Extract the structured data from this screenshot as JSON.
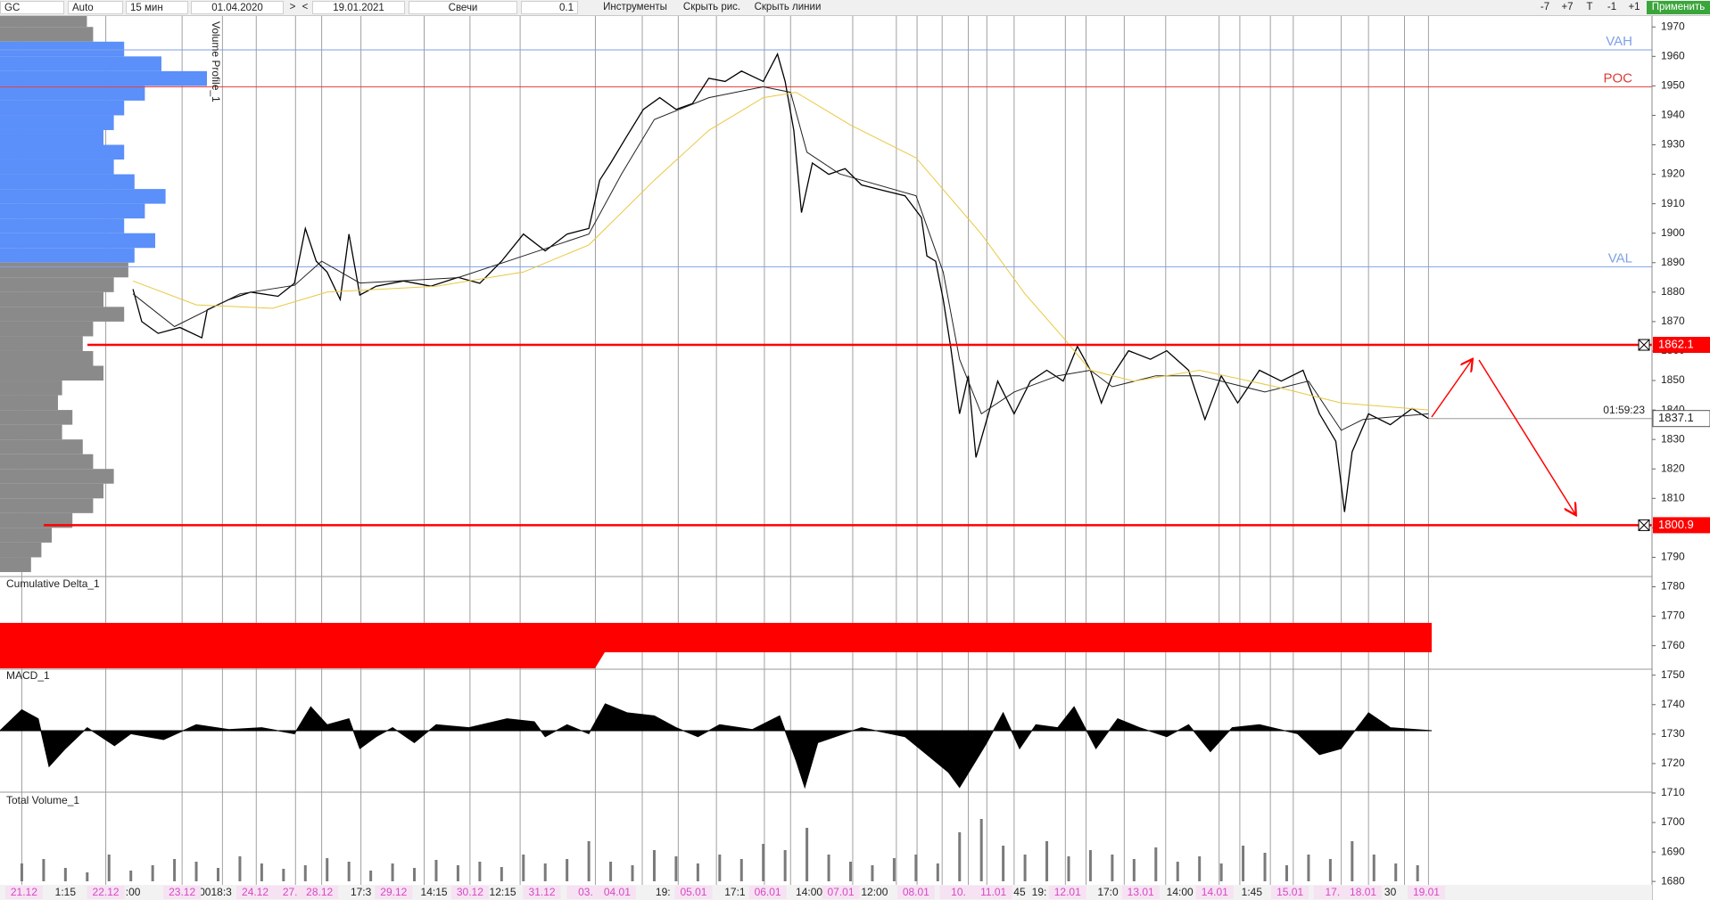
{
  "toolbar": {
    "symbol": "GC",
    "mode": "Auto",
    "timeframe": "15 мин",
    "from": "01.04.2020",
    "next": ">",
    "prev": "<",
    "to": "19.01.2021",
    "chart_style": "Свечи",
    "tick_size": "0.1",
    "tools": "Инструменты",
    "hide_drawings": "Скрыть рис.",
    "hide_lines": "Скрыть линии",
    "right_buttons": [
      "-7",
      "+7",
      "T",
      "-1",
      "+1"
    ],
    "apply": "Применить"
  },
  "chart_data": [
    {
      "type": "line",
      "xlim": [
        0,
        1515
      ],
      "ylim": [
        1673.7,
        1973.7
      ],
      "yticks": [
        1680,
        1690,
        1700,
        1710,
        1720,
        1730,
        1740,
        1750,
        1760,
        1770,
        1780,
        1790,
        1800,
        1810,
        1820,
        1830,
        1840,
        1850,
        1860,
        1870,
        1880,
        1890,
        1900,
        1910,
        1920,
        1930,
        1940,
        1950,
        1960,
        1970
      ],
      "xgrid": [
        20,
        97,
        167,
        204,
        235,
        271,
        295,
        331,
        389,
        431,
        477,
        546,
        589,
        622,
        657,
        701,
        725,
        782,
        822,
        841,
        864,
        888,
        905,
        930,
        977,
        996,
        1031,
        1069,
        1118,
        1137,
        1165,
        1186,
        1230,
        1255,
        1288,
        1310
      ],
      "date_labels": [
        {
          "value": 22,
          "label": "21.12"
        },
        {
          "value": 97,
          "label": "22.12"
        },
        {
          "value": 167,
          "label": "23.12"
        },
        {
          "value": 234,
          "label": "24.12"
        },
        {
          "value": 266,
          "label": "27."
        },
        {
          "value": 293,
          "label": "28.12"
        },
        {
          "value": 361,
          "label": "29.12"
        },
        {
          "value": 431,
          "label": "30.12"
        },
        {
          "value": 497,
          "label": "31.12"
        },
        {
          "value": 537,
          "label": "03."
        },
        {
          "value": 566,
          "label": "04.01"
        },
        {
          "value": 636,
          "label": "05.01"
        },
        {
          "value": 704,
          "label": "06.01"
        },
        {
          "value": 771,
          "label": "07.01"
        },
        {
          "value": 840,
          "label": "08.01"
        },
        {
          "value": 879,
          "label": "10."
        },
        {
          "value": 911,
          "label": "11.01"
        },
        {
          "value": 979,
          "label": "12.01"
        },
        {
          "value": 1046,
          "label": "13.01"
        },
        {
          "value": 1114,
          "label": "14.01"
        },
        {
          "value": 1183,
          "label": "15.01"
        },
        {
          "value": 1222,
          "label": "17."
        },
        {
          "value": 1250,
          "label": "18.01"
        },
        {
          "value": 1308,
          "label": "19.01"
        }
      ],
      "time_labels": [
        {
          "value": 60,
          "label": "1:15"
        },
        {
          "value": 122,
          "label": ":00"
        },
        {
          "value": 188,
          "label": "00"
        },
        {
          "value": 203,
          "label": "18:3"
        },
        {
          "value": 331,
          "label": "17:3"
        },
        {
          "value": 398,
          "label": "14:15"
        },
        {
          "value": 461,
          "label": "12:15"
        },
        {
          "value": 608,
          "label": "19:"
        },
        {
          "value": 674,
          "label": "17:1"
        },
        {
          "value": 742,
          "label": "14:00"
        },
        {
          "value": 802,
          "label": "12:00"
        },
        {
          "value": 935,
          "label": "45"
        },
        {
          "value": 953,
          "label": "19:"
        },
        {
          "value": 1016,
          "label": "17:0"
        },
        {
          "value": 1082,
          "label": "14:00"
        },
        {
          "value": 1148,
          "label": "1:45"
        },
        {
          "value": 1275,
          "label": "30"
        }
      ],
      "series": [
        {
          "color": "#000000",
          "x": [
            122,
            130,
            145,
            165,
            185,
            190,
            210,
            230,
            255,
            270,
            280,
            290,
            300,
            312,
            320,
            330,
            345,
            370,
            395,
            420,
            440,
            460,
            480,
            500,
            520,
            540,
            550,
            560,
            575,
            590,
            605,
            620,
            635,
            650,
            665,
            680,
            700,
            713,
            720,
            728,
            735,
            745,
            760,
            775,
            790,
            810,
            830,
            845,
            850,
            858,
            865,
            872,
            880,
            888,
            895,
            905,
            915,
            930,
            945,
            960,
            975,
            988,
            1000,
            1010,
            1020,
            1035,
            1055,
            1070,
            1090,
            1105,
            1120,
            1135,
            1155,
            1175,
            1195,
            1210,
            1225,
            1233,
            1240,
            1255,
            1275,
            1295,
            1310
          ],
          "values": [
            1881,
            1870,
            1866,
            1868,
            1864.5,
            1874,
            1877.5,
            1880,
            1878.6,
            1883,
            1901.6,
            1890.5,
            1886.8,
            1877.5,
            1899.7,
            1879,
            1882,
            1883.8,
            1882,
            1885,
            1883,
            1890.5,
            1899.7,
            1894,
            1899.7,
            1901.6,
            1918,
            1923.8,
            1933,
            1942,
            1946,
            1942,
            1944,
            1952.6,
            1951.5,
            1955,
            1951.5,
            1960.8,
            1951.5,
            1934.9,
            1907,
            1923.8,
            1920,
            1921.9,
            1916.4,
            1914.5,
            1912.7,
            1905.3,
            1892.3,
            1890.5,
            1877.5,
            1860.9,
            1838.7,
            1851.6,
            1823.9,
            1836.8,
            1849.8,
            1838.7,
            1849.8,
            1853.5,
            1849.8,
            1861.6,
            1853.5,
            1842.4,
            1851.6,
            1860.1,
            1857.2,
            1860.1,
            1853.5,
            1836.8,
            1851.6,
            1842.4,
            1853.5,
            1849.8,
            1853.5,
            1838.7,
            1829.4,
            1805.4,
            1825.8,
            1838.7,
            1835,
            1840.5,
            1837.1
          ]
        },
        {
          "color": "#222222",
          "x": [
            122,
            160,
            220,
            270,
            295,
            330,
            420,
            480,
            540,
            570,
            600,
            650,
            700,
            725,
            740,
            770,
            840,
            865,
            880,
            900,
            930,
            970,
            1000,
            1020,
            1060,
            1100,
            1160,
            1200,
            1230,
            1250,
            1310
          ],
          "values": [
            1879.4,
            1868.3,
            1879.4,
            1882.3,
            1890.5,
            1883.1,
            1884.9,
            1892.3,
            1899.7,
            1920.1,
            1938.6,
            1946,
            1949.7,
            1947.8,
            1927.5,
            1920.1,
            1912.7,
            1886.8,
            1857.2,
            1838.7,
            1846.1,
            1851.6,
            1853.5,
            1847.9,
            1851.6,
            1851.6,
            1846.1,
            1849.8,
            1833.1,
            1836.8,
            1838.7
          ]
        },
        {
          "color": "#e8c840",
          "x": [
            122,
            180,
            250,
            300,
            400,
            480,
            540,
            600,
            650,
            700,
            730,
            780,
            840,
            900,
            940,
            975,
            1000,
            1040,
            1100,
            1170,
            1230,
            1310
          ],
          "values": [
            1883.8,
            1875.7,
            1874.5,
            1880,
            1882,
            1886.8,
            1896,
            1918,
            1934.9,
            1946,
            1947.8,
            1936.7,
            1925.6,
            1899.7,
            1879.4,
            1864.6,
            1853.5,
            1849.8,
            1853.5,
            1847.9,
            1842.4,
            1840
          ]
        }
      ],
      "levels": [
        {
          "label": "VAH",
          "value": 1962.2,
          "color": "#7fa0e8"
        },
        {
          "label": "POC",
          "value": 1949.7,
          "color": "#e03a3a"
        },
        {
          "label": "VAL",
          "value": 1888.6,
          "color": "#7fa0e8"
        }
      ],
      "lines": [
        {
          "value": 1862.1,
          "color": "#ff0000"
        },
        {
          "value": 1800.9,
          "color": "#ff0000"
        }
      ],
      "last_price": {
        "value": 1837.1,
        "timer": "01:59:23"
      },
      "profile": {
        "title": "Volume Profile_1",
        "xlim": [
          0,
          100
        ],
        "value_area_color": "#5b8ff9",
        "outside_color": "#8a8a8a",
        "prices": [
          1970,
          1965,
          1960,
          1955,
          1950,
          1945,
          1940,
          1935,
          1930,
          1925,
          1920,
          1915,
          1910,
          1905,
          1900,
          1895,
          1890,
          1885,
          1880,
          1875,
          1870,
          1865,
          1860,
          1855,
          1850,
          1845,
          1840,
          1835,
          1830,
          1825,
          1820,
          1815,
          1810,
          1805,
          1800,
          1795,
          1790,
          1785
        ],
        "volumes": [
          42,
          45,
          60,
          78,
          100,
          70,
          60,
          55,
          50,
          60,
          55,
          65,
          80,
          70,
          60,
          75,
          65,
          62,
          55,
          50,
          60,
          45,
          40,
          45,
          50,
          30,
          28,
          35,
          30,
          40,
          45,
          55,
          50,
          45,
          35,
          25,
          20,
          15
        ]
      }
    },
    {
      "type": "area",
      "title": "Cumulative Delta_1",
      "color": "#ff0000"
    },
    {
      "type": "area",
      "title": "MACD_1",
      "color": "#000000",
      "ylim": [
        -1,
        1
      ],
      "x": [
        0,
        20,
        35,
        45,
        60,
        80,
        105,
        120,
        150,
        180,
        210,
        240,
        270,
        285,
        300,
        320,
        330,
        345,
        360,
        380,
        400,
        430,
        465,
        490,
        500,
        520,
        540,
        555,
        575,
        600,
        620,
        640,
        660,
        690,
        715,
        730,
        738,
        750,
        790,
        830,
        850,
        870,
        880,
        895,
        905,
        920,
        935,
        950,
        970,
        985,
        1005,
        1025,
        1045,
        1070,
        1090,
        1110,
        1130,
        1155,
        1190,
        1210,
        1230,
        1255,
        1275,
        1313
      ],
      "values": [
        0,
        0.35,
        0.2,
        -0.6,
        -0.3,
        0.05,
        -0.25,
        -0.05,
        -0.15,
        0.1,
        0.02,
        0.05,
        -0.05,
        0.4,
        0.1,
        0.2,
        -0.3,
        -0.1,
        0.05,
        -0.2,
        0.1,
        0.05,
        0.2,
        0.15,
        -0.1,
        0.1,
        -0.05,
        0.45,
        0.3,
        0.25,
        0.05,
        -0.1,
        0.1,
        0.02,
        0.25,
        -0.5,
        -0.95,
        -0.2,
        0.05,
        -0.1,
        -0.4,
        -0.7,
        -0.95,
        -0.5,
        -0.2,
        0.3,
        -0.3,
        0.1,
        0.05,
        0.4,
        -0.3,
        0.2,
        0.05,
        -0.1,
        0.1,
        -0.35,
        0.05,
        0.1,
        -0.05,
        -0.4,
        -0.3,
        0.3,
        0.05,
        0
      ]
    },
    {
      "type": "bar",
      "title": "Total Volume_1",
      "color": "#7a7a7a",
      "ylim": [
        0,
        100
      ],
      "x": [
        20,
        40,
        60,
        80,
        100,
        120,
        140,
        160,
        180,
        200,
        220,
        240,
        260,
        280,
        300,
        320,
        340,
        360,
        380,
        400,
        420,
        440,
        460,
        480,
        500,
        520,
        540,
        560,
        580,
        600,
        620,
        640,
        660,
        680,
        700,
        720,
        740,
        760,
        780,
        800,
        820,
        840,
        860,
        880,
        900,
        920,
        940,
        960,
        980,
        1000,
        1020,
        1040,
        1060,
        1080,
        1100,
        1120,
        1140,
        1160,
        1180,
        1200,
        1220,
        1240,
        1260,
        1280,
        1300
      ],
      "values": [
        20,
        25,
        15,
        10,
        30,
        12,
        18,
        25,
        22,
        15,
        28,
        20,
        14,
        18,
        26,
        22,
        12,
        20,
        15,
        24,
        18,
        22,
        16,
        30,
        20,
        25,
        45,
        22,
        18,
        35,
        28,
        20,
        30,
        25,
        42,
        35,
        60,
        30,
        22,
        18,
        26,
        30,
        20,
        55,
        70,
        40,
        30,
        45,
        28,
        35,
        30,
        25,
        38,
        22,
        28,
        20,
        40,
        32,
        18,
        30,
        25,
        45,
        30,
        20,
        18
      ]
    }
  ]
}
